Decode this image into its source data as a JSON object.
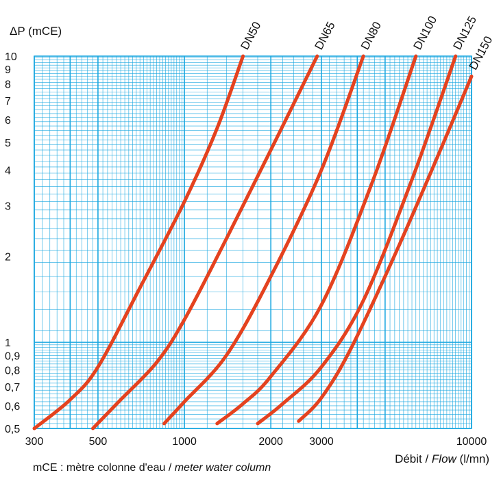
{
  "chart_data": {
    "type": "line",
    "ylabel": "ΔP (mCE)",
    "xlabel": {
      "main": "Débit / ",
      "italic": "Flow",
      "unit": " (l/mn)"
    },
    "x_scale": "log",
    "y_scale": "log",
    "xlim": [
      300,
      10000
    ],
    "ylim": [
      0.5,
      10
    ],
    "x_tick_labels": [
      "300",
      "500",
      "1000",
      "2000",
      "3000",
      "10000"
    ],
    "y_tick_labels": [
      "0,5",
      "0,6",
      "0,7",
      "0,8",
      "0,9",
      "1",
      "2",
      "3",
      "4",
      "5",
      "6",
      "7",
      "8",
      "9",
      "10"
    ],
    "grid": true,
    "series": [
      {
        "name": "DN50",
        "x": [
          300,
          400,
          500,
          700,
          1000,
          1300,
          1600
        ],
        "y": [
          0.5,
          0.63,
          0.82,
          1.55,
          3.1,
          5.6,
          10
        ]
      },
      {
        "name": "DN65",
        "x": [
          480,
          600,
          800,
          1000,
          1400,
          2000,
          2900
        ],
        "y": [
          0.5,
          0.63,
          0.85,
          1.2,
          2.3,
          4.7,
          10
        ]
      },
      {
        "name": "DN80",
        "x": [
          850,
          1000,
          1400,
          2000,
          3000,
          4200
        ],
        "y": [
          0.52,
          0.62,
          0.9,
          1.7,
          4.0,
          10
        ]
      },
      {
        "name": "DN100",
        "x": [
          1300,
          1600,
          2000,
          3000,
          4500,
          6400
        ],
        "y": [
          0.52,
          0.61,
          0.76,
          1.35,
          3.6,
          10
        ]
      },
      {
        "name": "DN125",
        "x": [
          1800,
          2200,
          3000,
          4200,
          6200,
          8800
        ],
        "y": [
          0.52,
          0.61,
          0.82,
          1.4,
          3.7,
          10
        ]
      },
      {
        "name": "DN150",
        "x": [
          2500,
          3000,
          3800,
          5500,
          8000,
          10000
        ],
        "y": [
          0.53,
          0.64,
          0.95,
          2.1,
          5.0,
          8.5
        ]
      }
    ]
  },
  "footnote": {
    "text": "mCE : mètre colonne d'eau / ",
    "italic": "meter water column"
  }
}
